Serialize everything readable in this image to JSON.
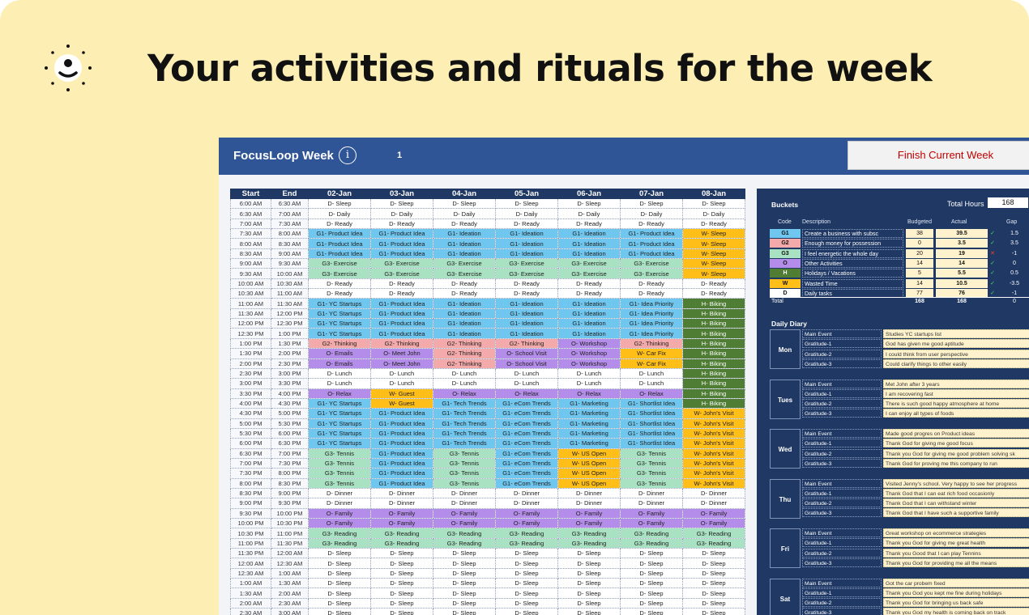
{
  "headline": "Your activities and rituals for the week",
  "app": {
    "title": "FocusLoop Week",
    "week_number": "1",
    "finish_button": "Finish Current Week"
  },
  "columns": [
    "Start",
    "End",
    "02-Jan",
    "03-Jan",
    "04-Jan",
    "05-Jan",
    "06-Jan",
    "07-Jan",
    "08-Jan"
  ],
  "rows": [
    {
      "start": "6:00 AM",
      "end": "6:30 AM",
      "cells": [
        "D- Sleep",
        "D- Sleep",
        "D- Sleep",
        "D- Sleep",
        "D- Sleep",
        "D- Sleep",
        "D- Sleep"
      ]
    },
    {
      "start": "6:30 AM",
      "end": "7:00 AM",
      "cells": [
        "D- Daily",
        "D- Daily",
        "D- Daily",
        "D- Daily",
        "D- Daily",
        "D- Daily",
        "D- Daily"
      ]
    },
    {
      "start": "7:00 AM",
      "end": "7:30 AM",
      "cells": [
        "D- Ready",
        "D- Ready",
        "D- Ready",
        "D- Ready",
        "D- Ready",
        "D- Ready",
        "D- Ready"
      ]
    },
    {
      "start": "7:30 AM",
      "end": "8:00 AM",
      "cells": [
        "G1- Product Idea",
        "G1- Product Idea",
        "G1- Ideation",
        "G1- Ideation",
        "G1- Ideation",
        "G1- Product Idea",
        "W- Sleep"
      ]
    },
    {
      "start": "8:00 AM",
      "end": "8:30 AM",
      "cells": [
        "G1- Product Idea",
        "G1- Product Idea",
        "G1- Ideation",
        "G1- Ideation",
        "G1- Ideation",
        "G1- Product Idea",
        "W- Sleep"
      ]
    },
    {
      "start": "8:30 AM",
      "end": "9:00 AM",
      "cells": [
        "G1- Product Idea",
        "G1- Product Idea",
        "G1- Ideation",
        "G1- Ideation",
        "G1- Ideation",
        "G1- Product Idea",
        "W- Sleep"
      ]
    },
    {
      "start": "9:00 AM",
      "end": "9:30 AM",
      "cells": [
        "G3- Exercise",
        "G3- Exercise",
        "G3- Exercise",
        "G3- Exercise",
        "G3- Exercise",
        "G3- Exercise",
        "W- Sleep"
      ]
    },
    {
      "start": "9:30 AM",
      "end": "10:00 AM",
      "cells": [
        "G3- Exercise",
        "G3- Exercise",
        "G3- Exercise",
        "G3- Exercise",
        "G3- Exercise",
        "G3- Exercise",
        "W- Sleep"
      ]
    },
    {
      "start": "10:00 AM",
      "end": "10:30 AM",
      "cells": [
        "D- Ready",
        "D- Ready",
        "D- Ready",
        "D- Ready",
        "D- Ready",
        "D- Ready",
        "D- Ready"
      ]
    },
    {
      "start": "10:30 AM",
      "end": "11:00 AM",
      "cells": [
        "D- Ready",
        "D- Ready",
        "D- Ready",
        "D- Ready",
        "D- Ready",
        "D- Ready",
        "D- Ready"
      ]
    },
    {
      "start": "11:00 AM",
      "end": "11:30 AM",
      "cells": [
        "G1- YC Startups",
        "G1- Product Idea",
        "G1- Ideation",
        "G1- Ideation",
        "G1- Ideation",
        "G1- Idea Priority",
        "H- Biking"
      ]
    },
    {
      "start": "11:30 AM",
      "end": "12:00 PM",
      "cells": [
        "G1- YC Startups",
        "G1- Product Idea",
        "G1- Ideation",
        "G1- Ideation",
        "G1- Ideation",
        "G1- Idea Priority",
        "H- Biking"
      ]
    },
    {
      "start": "12:00 PM",
      "end": "12:30 PM",
      "cells": [
        "G1- YC Startups",
        "G1- Product Idea",
        "G1- Ideation",
        "G1- Ideation",
        "G1- Ideation",
        "G1- Idea Priority",
        "H- Biking"
      ]
    },
    {
      "start": "12:30 PM",
      "end": "1:00 PM",
      "cells": [
        "G1- YC Startups",
        "G1- Product Idea",
        "G1- Ideation",
        "G1- Ideation",
        "G1- Ideation",
        "G1- Idea Priority",
        "H- Biking"
      ]
    },
    {
      "start": "1:00 PM",
      "end": "1:30 PM",
      "cells": [
        "G2- Thinking",
        "G2- Thinking",
        "G2- Thinking",
        "G2- Thinking",
        "O- Workshop",
        "G2- Thinking",
        "H- Biking"
      ]
    },
    {
      "start": "1:30 PM",
      "end": "2:00 PM",
      "cells": [
        "O- Emails",
        "O- Meet John",
        "G2- Thinking",
        "O- School Visit",
        "O- Workshop",
        "W- Car Fix",
        "H- Biking"
      ]
    },
    {
      "start": "2:00 PM",
      "end": "2:30 PM",
      "cells": [
        "O- Emails",
        "O- Meet John",
        "G2- Thinking",
        "O- School Visit",
        "O- Workshop",
        "W- Car Fix",
        "H- Biking"
      ]
    },
    {
      "start": "2:30 PM",
      "end": "3:00 PM",
      "cells": [
        "D- Lunch",
        "D- Lunch",
        "D- Lunch",
        "D- Lunch",
        "D- Lunch",
        "D- Lunch",
        "H- Biking"
      ]
    },
    {
      "start": "3:00 PM",
      "end": "3:30 PM",
      "cells": [
        "D- Lunch",
        "D- Lunch",
        "D- Lunch",
        "D- Lunch",
        "D- Lunch",
        "D- Lunch",
        "H- Biking"
      ]
    },
    {
      "start": "3:30 PM",
      "end": "4:00 PM",
      "cells": [
        "O- Relax",
        "W- Guest",
        "O- Relax",
        "O- Relax",
        "O- Relax",
        "O- Relax",
        "H- Biking"
      ]
    },
    {
      "start": "4:00 PM",
      "end": "4:30 PM",
      "cells": [
        "G1- YC Startups",
        "W- Guest",
        "G1- Tech Trends",
        "G1- eCom Trends",
        "G1- Marketing",
        "G1- Shortlist Idea",
        "H- Biking"
      ]
    },
    {
      "start": "4:30 PM",
      "end": "5:00 PM",
      "cells": [
        "G1- YC Startups",
        "G1- Product Idea",
        "G1- Tech Trends",
        "G1- eCom Trends",
        "G1- Marketing",
        "G1- Shortlist Idea",
        "W- John's Visit"
      ]
    },
    {
      "start": "5:00 PM",
      "end": "5:30 PM",
      "cells": [
        "G1- YC Startups",
        "G1- Product Idea",
        "G1- Tech Trends",
        "G1- eCom Trends",
        "G1- Marketing",
        "G1- Shortlist Idea",
        "W- John's Visit"
      ]
    },
    {
      "start": "5:30 PM",
      "end": "6:00 PM",
      "cells": [
        "G1- YC Startups",
        "G1- Product Idea",
        "G1- Tech Trends",
        "G1- eCom Trends",
        "G1- Marketing",
        "G1- Shortlist Idea",
        "W- John's Visit"
      ]
    },
    {
      "start": "6:00 PM",
      "end": "6:30 PM",
      "cells": [
        "G1- YC Startups",
        "G1- Product Idea",
        "G1- Tech Trends",
        "G1- eCom Trends",
        "G1- Marketing",
        "G1- Shortlist Idea",
        "W- John's Visit"
      ]
    },
    {
      "start": "6:30 PM",
      "end": "7:00 PM",
      "cells": [
        "G3- Tennis",
        "G1- Product Idea",
        "G3- Tennis",
        "G1- eCom Trends",
        "W- US Open",
        "G3- Tennis",
        "W- John's Visit"
      ]
    },
    {
      "start": "7:00 PM",
      "end": "7:30 PM",
      "cells": [
        "G3- Tennis",
        "G1- Product Idea",
        "G3- Tennis",
        "G1- eCom Trends",
        "W- US Open",
        "G3- Tennis",
        "W- John's Visit"
      ]
    },
    {
      "start": "7:30 PM",
      "end": "8:00 PM",
      "cells": [
        "G3- Tennis",
        "G1- Product Idea",
        "G3- Tennis",
        "G1- eCom Trends",
        "W- US Open",
        "G3- Tennis",
        "W- John's Visit"
      ]
    },
    {
      "start": "8:00 PM",
      "end": "8:30 PM",
      "cells": [
        "G3- Tennis",
        "G1- Product Idea",
        "G3- Tennis",
        "G1- eCom Trends",
        "W- US Open",
        "G3- Tennis",
        "W- John's Visit"
      ]
    },
    {
      "start": "8:30 PM",
      "end": "9:00 PM",
      "cells": [
        "D- Dinner",
        "D- Dinner",
        "D- Dinner",
        "D- Dinner",
        "D- Dinner",
        "D- Dinner",
        "D- Dinner"
      ]
    },
    {
      "start": "9:00 PM",
      "end": "9:30 PM",
      "cells": [
        "D- Dinner",
        "D- Dinner",
        "D- Dinner",
        "D- Dinner",
        "D- Dinner",
        "D- Dinner",
        "D- Dinner"
      ]
    },
    {
      "start": "9:30 PM",
      "end": "10:00 PM",
      "cells": [
        "O- Family",
        "O- Family",
        "O- Family",
        "O- Family",
        "O- Family",
        "O- Family",
        "O- Family"
      ]
    },
    {
      "start": "10:00 PM",
      "end": "10:30 PM",
      "cells": [
        "O- Family",
        "O- Family",
        "O- Family",
        "O- Family",
        "O- Family",
        "O- Family",
        "O- Family"
      ]
    },
    {
      "start": "10:30 PM",
      "end": "11:00 PM",
      "cells": [
        "G3- Reading",
        "G3- Reading",
        "G3- Reading",
        "G3- Reading",
        "G3- Reading",
        "G3- Reading",
        "G3- Reading"
      ]
    },
    {
      "start": "11:00 PM",
      "end": "11:30 PM",
      "cells": [
        "G3- Reading",
        "G3- Reading",
        "G3- Reading",
        "G3- Reading",
        "G3- Reading",
        "G3- Reading",
        "G3- Reading"
      ]
    },
    {
      "start": "11:30 PM",
      "end": "12:00 AM",
      "cells": [
        "D- Sleep",
        "D- Sleep",
        "D- Sleep",
        "D- Sleep",
        "D- Sleep",
        "D- Sleep",
        "D- Sleep"
      ]
    },
    {
      "start": "12:00 AM",
      "end": "12:30 AM",
      "cells": [
        "D- Sleep",
        "D- Sleep",
        "D- Sleep",
        "D- Sleep",
        "D- Sleep",
        "D- Sleep",
        "D- Sleep"
      ]
    },
    {
      "start": "12:30 AM",
      "end": "1:00 AM",
      "cells": [
        "D- Sleep",
        "D- Sleep",
        "D- Sleep",
        "D- Sleep",
        "D- Sleep",
        "D- Sleep",
        "D- Sleep"
      ]
    },
    {
      "start": "1:00 AM",
      "end": "1:30 AM",
      "cells": [
        "D- Sleep",
        "D- Sleep",
        "D- Sleep",
        "D- Sleep",
        "D- Sleep",
        "D- Sleep",
        "D- Sleep"
      ]
    },
    {
      "start": "1:30 AM",
      "end": "2:00 AM",
      "cells": [
        "D- Sleep",
        "D- Sleep",
        "D- Sleep",
        "D- Sleep",
        "D- Sleep",
        "D- Sleep",
        "D- Sleep"
      ]
    },
    {
      "start": "2:00 AM",
      "end": "2:30 AM",
      "cells": [
        "D- Sleep",
        "D- Sleep",
        "D- Sleep",
        "D- Sleep",
        "D- Sleep",
        "D- Sleep",
        "D- Sleep"
      ]
    },
    {
      "start": "2:30 AM",
      "end": "3:00 AM",
      "cells": [
        "D- Sleep",
        "D- Sleep",
        "D- Sleep",
        "D- Sleep",
        "D- Sleep",
        "D- Sleep",
        "D- Sleep"
      ]
    }
  ],
  "buckets": {
    "title": "Buckets",
    "total_hours_label": "Total Hours",
    "total_hours": "168",
    "headers": {
      "code": "Code",
      "description": "Description",
      "budgeted": "Budgeted",
      "actual": "Actual",
      "gap": "Gap"
    },
    "items": [
      {
        "code": "G1",
        "description": "Create a business with subsc",
        "budgeted": "38",
        "actual": "39.5",
        "mark": "✓",
        "gap": "1.5",
        "color": "#6fc7ef"
      },
      {
        "code": "G2",
        "description": "Enough money for possession",
        "budgeted": "0",
        "actual": "3.5",
        "mark": "✓",
        "gap": "3.5",
        "color": "#f4aaaa"
      },
      {
        "code": "G3",
        "description": "I feel energetic the whole day",
        "budgeted": "20",
        "actual": "19",
        "mark": "✕",
        "gap": "-1",
        "color": "#a9e2c2"
      },
      {
        "code": "O",
        "description": "Other Activities",
        "budgeted": "14",
        "actual": "14",
        "mark": "✓",
        "gap": "0",
        "color": "#b48cea"
      },
      {
        "code": "H",
        "description": "Holidays / Vacations",
        "budgeted": "5",
        "actual": "5.5",
        "mark": "✓",
        "gap": "0.5",
        "color": "#4e7d33"
      },
      {
        "code": "W",
        "description": "Wasted Time",
        "budgeted": "14",
        "actual": "10.5",
        "mark": "✓",
        "gap": "-3.5",
        "color": "#ffbe18"
      },
      {
        "code": "D",
        "description": "Daily tasks",
        "budgeted": "77",
        "actual": "76",
        "mark": "✓",
        "gap": "-1",
        "color": "#ffffff"
      }
    ],
    "total": {
      "label": "Total",
      "budgeted": "168",
      "actual": "168",
      "gap": "0"
    }
  },
  "diary": {
    "title": "Daily Diary",
    "labels": [
      "Main Event",
      "Gratitude-1",
      "Gratitude-2",
      "Gratitude-3"
    ],
    "days": [
      {
        "day": "Mon",
        "entries": [
          "Studies YC startups list",
          "God has given me good aptitude",
          "I could think from user perspective",
          "Could clarify things to other easily"
        ]
      },
      {
        "day": "Tues",
        "entries": [
          "Met John after 3 years",
          "I am recovering fast",
          "There is such good happy atmosphere at home",
          "I can enjoy all types of foods"
        ]
      },
      {
        "day": "Wed",
        "entries": [
          "Made good progres on Product ideas",
          "Thank God for giving me good focus",
          "Thank you God for giving me good problem solving sk",
          "Thank God for proving me this company to run"
        ]
      },
      {
        "day": "Thu",
        "entries": [
          "Visited Jenny's school. Very happy to see her progress",
          "Thank God that I can eat rich food occasionly",
          "Thank God that I can withstand winter",
          "Thank God that I have such a supportive family"
        ]
      },
      {
        "day": "Fri",
        "entries": [
          "Great workshop on ecommerce strategies",
          "Thank you God for giving me great health",
          "Thank you Good that I can play Tennins",
          "Thank you God for providing me all the means"
        ]
      },
      {
        "day": "Sat",
        "entries": [
          "Got the car probem fixed",
          "Thank you God you kept me fine during holidays",
          "Thank you God for bringing us back safe",
          "Thank you God my health is coming back on track"
        ]
      }
    ]
  }
}
